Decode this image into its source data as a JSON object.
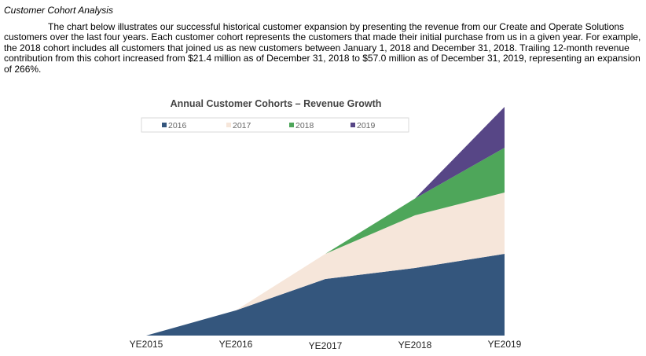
{
  "section": {
    "title": "Customer Cohort Analysis",
    "paragraph": "The chart below illustrates our successful historical customer expansion by presenting the revenue from our Create and Operate Solutions customers over the last four years. Each customer cohort represents the customers that made their initial purchase from us in a given year. For example, the 2018 cohort includes all customers that joined us as new customers between January 1, 2018 and December 31, 2018. Trailing 12-month revenue contribution from this cohort increased from $21.4 million as of December 31, 2018 to $57.0 million as of December 31, 2019, representing an expansion of 266%."
  },
  "chart_data": {
    "type": "area",
    "stacked": true,
    "title": "Annual Customer Cohorts – Revenue Growth",
    "categories": [
      "YE2015",
      "YE2016",
      "YE2017",
      "YE2018",
      "YE2019"
    ],
    "series": [
      {
        "name": "2016",
        "color": "#34567d",
        "values": [
          0,
          32,
          72,
          86,
          104
        ]
      },
      {
        "name": "2017",
        "color": "#f6e6da",
        "values": [
          0,
          0,
          32,
          67,
          78
        ]
      },
      {
        "name": "2018",
        "color": "#4ea65a",
        "values": [
          0,
          0,
          0,
          21.4,
          57.0
        ]
      },
      {
        "name": "2019",
        "color": "#574686",
        "values": [
          0,
          0,
          0,
          0,
          52
        ]
      }
    ],
    "ylim": [
      0,
      295
    ],
    "legend_position": "top",
    "grid": false,
    "xlabel": "",
    "ylabel": ""
  }
}
